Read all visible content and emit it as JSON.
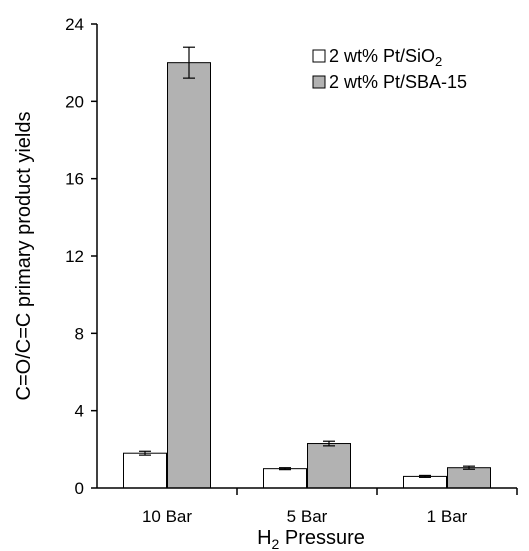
{
  "chart_data": {
    "type": "bar",
    "categories": [
      "10 Bar",
      "5 Bar",
      "1 Bar"
    ],
    "series": [
      {
        "name_main": "2 wt% Pt/SiO",
        "name_sub": "2",
        "name": "2 wt% Pt/SiO2",
        "color": "#ffffff",
        "values": [
          1.8,
          1.0,
          0.6
        ],
        "errors": [
          0.1,
          0.05,
          0.05
        ]
      },
      {
        "name_main": "2 wt% Pt/SBA-15",
        "name_sub": "",
        "name": "2 wt% Pt/SBA-15",
        "color": "#b2b2b2",
        "values": [
          22.0,
          2.3,
          1.05
        ],
        "errors": [
          0.8,
          0.12,
          0.08
        ]
      }
    ],
    "xlabel_main": "H",
    "xlabel_sub": "2",
    "xlabel_rest": " Pressure",
    "xlabel": "H2 Pressure",
    "ylabel": "C=O/C=C primary product yields",
    "ylim": [
      0,
      24
    ],
    "yticks": [
      "0",
      "4",
      "8",
      "12",
      "16",
      "20",
      "24"
    ],
    "grid": false,
    "legend_position": "top-right"
  }
}
